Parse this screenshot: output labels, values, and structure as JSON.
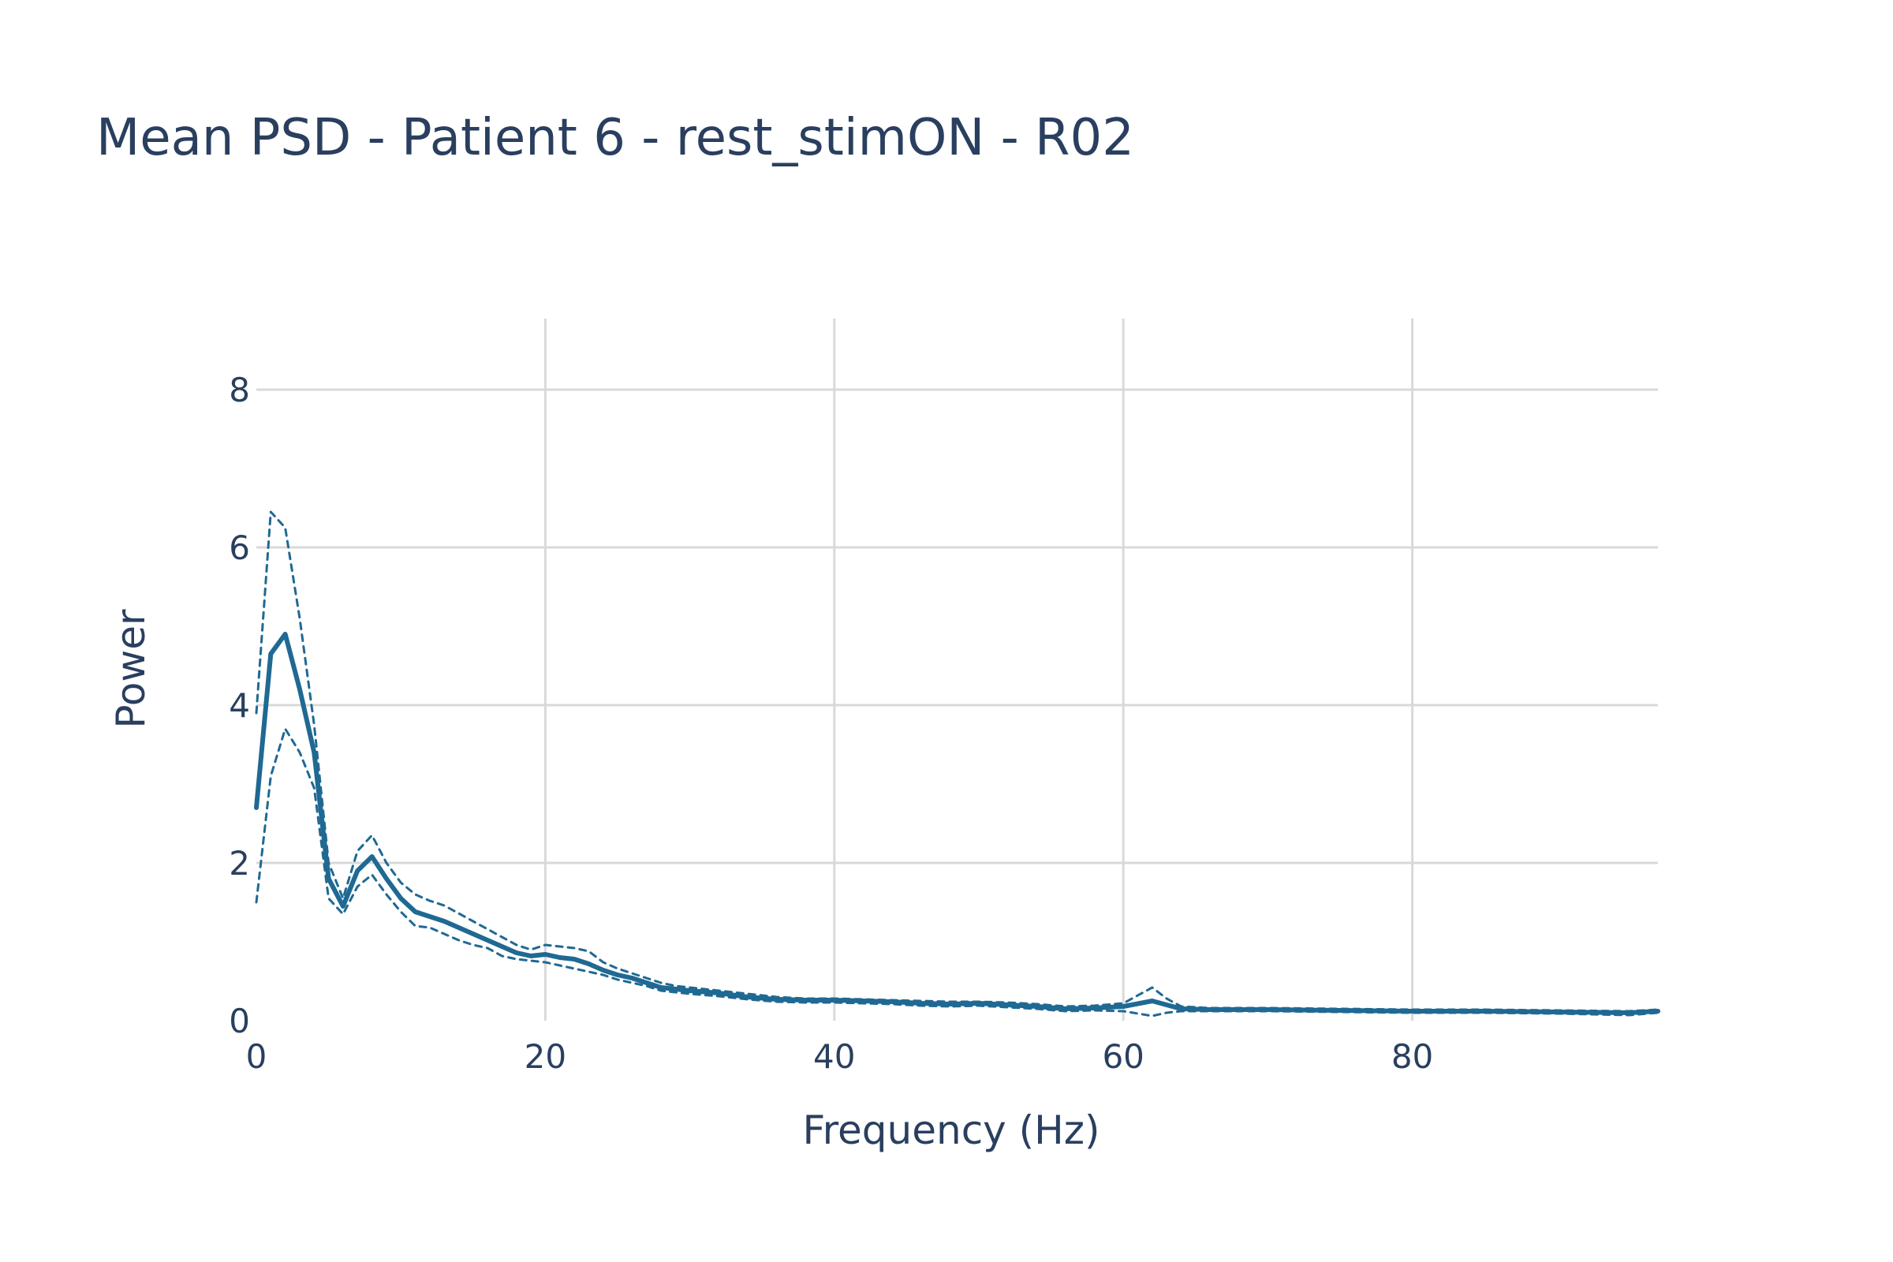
{
  "chart_data": {
    "type": "line",
    "title": "Mean PSD - Patient 6 - rest_stimON - R02",
    "xlabel": "Frequency (Hz)",
    "ylabel": "Power",
    "xlim": [
      0,
      97
    ],
    "ylim": [
      0,
      8.9
    ],
    "x_ticks": [
      0,
      20,
      40,
      60,
      80
    ],
    "x_tick_labels": [
      "0",
      "20",
      "40",
      "60",
      "80"
    ],
    "y_ticks": [
      0,
      2,
      4,
      6,
      8
    ],
    "y_tick_labels": [
      "0",
      "2",
      "4",
      "6",
      "8"
    ],
    "grid": true,
    "legend": false,
    "line_color": "#1f6993",
    "series": [
      {
        "style": "solid",
        "x": [
          0,
          1,
          2,
          3,
          4,
          5,
          6,
          7,
          8,
          9,
          10,
          11,
          12,
          13,
          14,
          15,
          16,
          17,
          18,
          19,
          20,
          21,
          22,
          23,
          24,
          25,
          26,
          27,
          28,
          29,
          30,
          32,
          34,
          36,
          38,
          40,
          42,
          44,
          46,
          48,
          50,
          52,
          54,
          56,
          58,
          60,
          62,
          63,
          64,
          66,
          70,
          75,
          80,
          85,
          90,
          95,
          97
        ],
        "values": [
          2.7,
          4.65,
          4.9,
          4.2,
          3.4,
          1.8,
          1.45,
          1.9,
          2.08,
          1.8,
          1.55,
          1.38,
          1.32,
          1.26,
          1.18,
          1.1,
          1.02,
          0.94,
          0.86,
          0.82,
          0.84,
          0.8,
          0.78,
          0.72,
          0.64,
          0.58,
          0.54,
          0.48,
          0.42,
          0.4,
          0.38,
          0.35,
          0.3,
          0.27,
          0.26,
          0.26,
          0.25,
          0.24,
          0.22,
          0.21,
          0.22,
          0.2,
          0.18,
          0.15,
          0.16,
          0.18,
          0.25,
          0.2,
          0.15,
          0.14,
          0.14,
          0.13,
          0.12,
          0.12,
          0.11,
          0.1,
          0.12
        ]
      },
      {
        "style": "dashed",
        "x": [
          0,
          1,
          2,
          3,
          4,
          5,
          6,
          7,
          8,
          9,
          10,
          11,
          12,
          13,
          14,
          15,
          16,
          17,
          18,
          19,
          20,
          21,
          22,
          23,
          24,
          25,
          26,
          27,
          28,
          29,
          30,
          32,
          34,
          36,
          38,
          40,
          42,
          44,
          46,
          48,
          50,
          52,
          54,
          56,
          58,
          60,
          62,
          63,
          64,
          66,
          70,
          75,
          80,
          85,
          90,
          95,
          97
        ],
        "values": [
          3.9,
          6.45,
          6.25,
          5.1,
          3.75,
          2.0,
          1.55,
          2.15,
          2.35,
          2.0,
          1.75,
          1.6,
          1.52,
          1.46,
          1.36,
          1.26,
          1.16,
          1.06,
          0.96,
          0.9,
          0.96,
          0.94,
          0.92,
          0.88,
          0.74,
          0.66,
          0.6,
          0.54,
          0.48,
          0.44,
          0.42,
          0.38,
          0.34,
          0.3,
          0.28,
          0.28,
          0.27,
          0.26,
          0.25,
          0.24,
          0.24,
          0.23,
          0.21,
          0.18,
          0.19,
          0.22,
          0.42,
          0.28,
          0.18,
          0.16,
          0.16,
          0.15,
          0.14,
          0.14,
          0.13,
          0.12,
          0.14
        ]
      },
      {
        "style": "dashed",
        "x": [
          0,
          1,
          2,
          3,
          4,
          5,
          6,
          7,
          8,
          9,
          10,
          11,
          12,
          13,
          14,
          15,
          16,
          17,
          18,
          19,
          20,
          21,
          22,
          23,
          24,
          25,
          26,
          27,
          28,
          29,
          30,
          32,
          34,
          36,
          38,
          40,
          42,
          44,
          46,
          48,
          50,
          52,
          54,
          56,
          58,
          60,
          62,
          63,
          64,
          66,
          70,
          75,
          80,
          85,
          90,
          95,
          97
        ],
        "values": [
          1.5,
          3.1,
          3.7,
          3.4,
          2.95,
          1.55,
          1.35,
          1.7,
          1.85,
          1.6,
          1.38,
          1.2,
          1.18,
          1.1,
          1.02,
          0.96,
          0.92,
          0.82,
          0.78,
          0.76,
          0.74,
          0.7,
          0.66,
          0.62,
          0.58,
          0.52,
          0.48,
          0.44,
          0.38,
          0.36,
          0.34,
          0.31,
          0.27,
          0.24,
          0.23,
          0.23,
          0.22,
          0.21,
          0.19,
          0.18,
          0.19,
          0.17,
          0.15,
          0.12,
          0.13,
          0.12,
          0.06,
          0.1,
          0.12,
          0.12,
          0.12,
          0.11,
          0.1,
          0.1,
          0.09,
          0.07,
          0.1
        ]
      }
    ]
  }
}
